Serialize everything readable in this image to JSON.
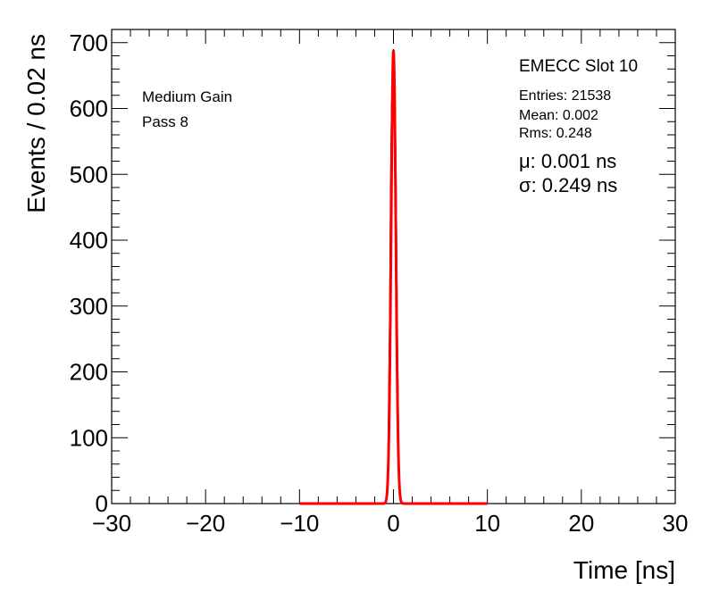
{
  "chart_data": {
    "type": "line",
    "xlabel": "Time [ns]",
    "ylabel": "Events / 0.02 ns",
    "xlim": [
      -30,
      30
    ],
    "ylim": [
      0,
      720
    ],
    "x_ticks": [
      -30,
      -20,
      -10,
      0,
      10,
      20,
      30
    ],
    "y_ticks": [
      0,
      100,
      200,
      300,
      400,
      500,
      600,
      700
    ],
    "x_tick_labels": [
      "−30",
      "−20",
      "−10",
      "0",
      "10",
      "20",
      "30"
    ],
    "y_tick_labels": [
      "0",
      "100",
      "200",
      "300",
      "400",
      "500",
      "600",
      "700"
    ],
    "grid": false,
    "annotations_left": [
      "Medium Gain",
      "Pass 8"
    ],
    "stats": {
      "title": "EMECC Slot 10",
      "entries": "Entries: 21538",
      "mean": "Mean: 0.002",
      "rms": "Rms: 0.248",
      "mu": "μ: 0.001 ns",
      "sigma": "σ: 0.249 ns"
    },
    "series": [
      {
        "kind": "histogram",
        "color": "#000000",
        "x": [
          -0.8,
          -0.6,
          -0.4,
          -0.3,
          -0.2,
          -0.1,
          0.0,
          0.1,
          0.2,
          0.3,
          0.4,
          0.6,
          0.8
        ],
        "y": [
          0,
          40,
          280,
          480,
          600,
          650,
          690,
          660,
          580,
          450,
          260,
          30,
          0
        ]
      },
      {
        "kind": "gaussian-fit",
        "color": "#ff0000",
        "mu": 0.001,
        "sigma": 0.249,
        "amplitude": 688,
        "range": [
          -10,
          10
        ]
      }
    ]
  }
}
